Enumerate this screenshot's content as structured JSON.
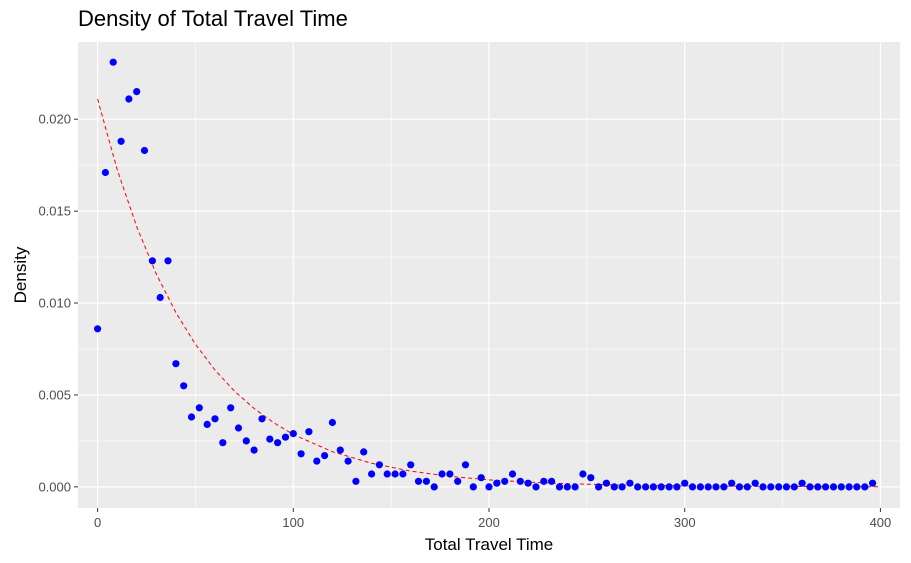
{
  "chart_data": {
    "type": "scatter",
    "title": "Density of Total Travel Time",
    "xlabel": "Total Travel Time",
    "ylabel": "Density",
    "xlim": [
      -10,
      410
    ],
    "ylim": [
      -0.00115,
      0.0242
    ],
    "x_ticks": [
      0,
      100,
      200,
      300,
      400
    ],
    "x_tick_labels": [
      "0",
      "100",
      "200",
      "300",
      "400"
    ],
    "y_ticks": [
      0.0,
      0.005,
      0.01,
      0.015,
      0.02
    ],
    "y_tick_labels": [
      "0.000",
      "0.005",
      "0.010",
      "0.015",
      "0.020"
    ],
    "grid": true,
    "legend": "none",
    "colors": {
      "points": "#0000ff",
      "fit_line": "#ff0000",
      "panel_background": "#ebebeb",
      "grid": "#ffffff"
    },
    "series": [
      {
        "type": "scatter",
        "x": [
          0,
          4,
          8,
          12,
          16,
          20,
          24,
          28,
          36,
          32,
          40,
          44,
          48,
          52,
          56,
          60,
          64,
          68,
          72,
          76,
          80,
          84,
          88,
          92,
          96,
          100,
          104,
          108,
          112,
          116,
          120,
          124,
          128,
          132,
          136,
          140,
          144,
          148,
          152,
          156,
          160,
          164,
          168,
          172,
          176,
          180,
          184,
          188,
          192,
          196,
          200,
          204,
          208,
          212,
          216,
          220,
          224,
          228,
          232,
          236,
          240,
          244,
          248,
          252,
          256,
          260,
          264,
          268,
          272,
          276,
          280,
          284,
          288,
          292,
          296,
          300,
          304,
          308,
          312,
          316,
          320,
          324,
          328,
          332,
          336,
          340,
          344,
          348,
          352,
          356,
          360,
          364,
          368,
          372,
          376,
          380,
          384,
          388,
          392,
          396
        ],
        "y": [
          0.0086,
          0.0171,
          0.0231,
          0.0188,
          0.0211,
          0.0215,
          0.0183,
          0.0123,
          0.0123,
          0.0103,
          0.0067,
          0.0055,
          0.0038,
          0.0043,
          0.0034,
          0.0037,
          0.0024,
          0.0043,
          0.0032,
          0.0025,
          0.002,
          0.0037,
          0.0026,
          0.0024,
          0.0027,
          0.0029,
          0.0018,
          0.003,
          0.0014,
          0.0017,
          0.0035,
          0.002,
          0.0014,
          0.0003,
          0.0019,
          0.0007,
          0.0012,
          0.0007,
          0.0007,
          0.0007,
          0.0012,
          0.0003,
          0.0003,
          0.0,
          0.0007,
          0.0007,
          0.0003,
          0.0012,
          0.0,
          0.0005,
          0.0,
          0.0002,
          0.0003,
          0.0007,
          0.0003,
          0.0002,
          0.0,
          0.0003,
          0.0003,
          0.0,
          0.0,
          0.0,
          0.0007,
          0.0005,
          0.0,
          0.0002,
          0.0,
          0.0,
          0.0002,
          0.0,
          0.0,
          0.0,
          0.0,
          0.0,
          0.0,
          0.0002,
          0.0,
          0.0,
          0.0,
          0.0,
          0.0,
          0.0002,
          0.0,
          0.0,
          0.0002,
          0.0,
          0.0,
          0.0,
          0.0,
          0.0,
          0.0002,
          0.0,
          0.0,
          0.0,
          0.0,
          0.0,
          0.0,
          0.0,
          0.0,
          0.0002
        ]
      },
      {
        "type": "line",
        "style": "dashed",
        "x": [
          0,
          10,
          20,
          30,
          40,
          50,
          60,
          70,
          80,
          90,
          100,
          120,
          140,
          160,
          180,
          200,
          220,
          240,
          260,
          280,
          300,
          320,
          340,
          360,
          380,
          400
        ],
        "y": [
          0.0211,
          0.01728,
          0.01415,
          0.01158,
          0.00948,
          0.00776,
          0.00635,
          0.0052,
          0.00426,
          0.00349,
          0.00285,
          0.00191,
          0.00128,
          0.00086,
          0.00057,
          0.00038,
          0.00026,
          0.00017,
          0.00012,
          8e-05,
          5e-05,
          4e-05,
          2e-05,
          2e-05,
          1e-05,
          1e-05
        ]
      }
    ]
  }
}
